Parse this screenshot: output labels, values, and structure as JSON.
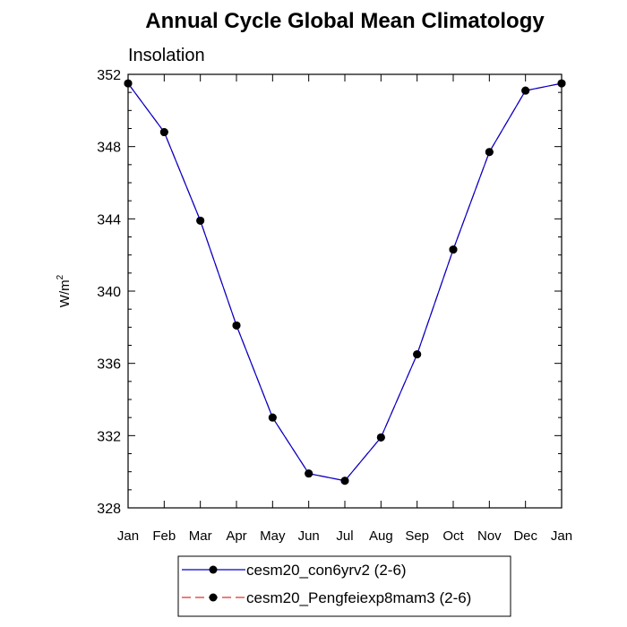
{
  "chart_data": {
    "type": "line",
    "title": "Annual Cycle Global Mean Climatology",
    "subtitle": "Insolation",
    "ylabel": "W/m",
    "ylabel_superscript": "2",
    "xlabel": "",
    "categories": [
      "Jan",
      "Feb",
      "Mar",
      "Apr",
      "May",
      "Jun",
      "Jul",
      "Aug",
      "Sep",
      "Oct",
      "Nov",
      "Dec",
      "Jan"
    ],
    "ylim": [
      328,
      352
    ],
    "yticks": [
      328,
      332,
      336,
      340,
      344,
      348,
      352
    ],
    "series": [
      {
        "name": "cesm20_con6yrv2 (2-6)",
        "color": "#0000cc",
        "line_style": "solid",
        "values": [
          351.5,
          348.8,
          343.9,
          338.1,
          333.0,
          329.9,
          329.5,
          331.9,
          336.5,
          342.3,
          347.7,
          351.1,
          351.5
        ]
      },
      {
        "name": "cesm20_Pengfeiexp8mam3 (2-6)",
        "color": "#e03030",
        "line_style": "dashed",
        "values": [
          351.5,
          348.8,
          343.9,
          338.1,
          333.0,
          329.9,
          329.5,
          331.9,
          336.5,
          342.3,
          347.7,
          351.1,
          351.5
        ]
      }
    ],
    "marker_color": "#000000",
    "legend_position": "bottom"
  }
}
